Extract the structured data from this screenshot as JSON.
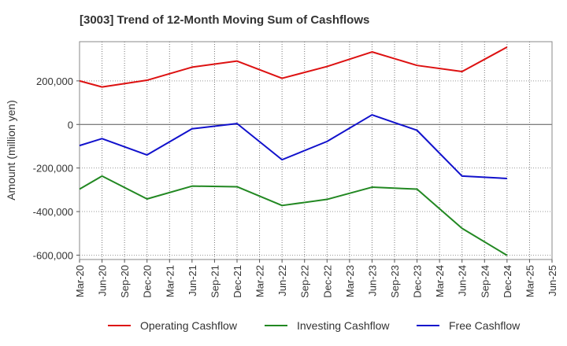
{
  "chart_data": {
    "type": "line",
    "title": "[3003]  Trend of 12-Month Moving Sum of Cashflows",
    "xlabel": "",
    "ylabel": "Amount (million yen)",
    "ylim": [
      -620000,
      380000
    ],
    "yticks": [
      200000,
      0,
      -200000,
      -400000,
      -600000
    ],
    "ytick_labels": [
      "200,000",
      "0",
      "-200,000",
      "-400,000",
      "-600,000"
    ],
    "categories": [
      "Mar-20",
      "Jun-20",
      "Sep-20",
      "Dec-20",
      "Mar-21",
      "Jun-21",
      "Sep-21",
      "Dec-21",
      "Mar-22",
      "Jun-22",
      "Sep-22",
      "Dec-22",
      "Mar-23",
      "Jun-23",
      "Sep-23",
      "Dec-23",
      "Mar-24",
      "Jun-24",
      "Sep-24",
      "Dec-24",
      "Mar-25",
      "Jun-25"
    ],
    "grid": true,
    "legend_position": "bottom",
    "series": [
      {
        "name": "Operating Cashflow",
        "color": "#dd1111",
        "values": [
          200000,
          172000,
          null,
          203000,
          null,
          263000,
          null,
          291000,
          null,
          212000,
          null,
          266000,
          null,
          333000,
          null,
          271000,
          null,
          243000,
          null,
          355000,
          null,
          null
        ]
      },
      {
        "name": "Investing Cashflow",
        "color": "#228822",
        "values": [
          -297000,
          -237000,
          null,
          -342000,
          null,
          -283000,
          null,
          -286000,
          null,
          -372000,
          null,
          -344000,
          null,
          -288000,
          null,
          -297000,
          null,
          -477000,
          null,
          -601000,
          null,
          null
        ]
      },
      {
        "name": "Free Cashflow",
        "color": "#1111cc",
        "values": [
          -97000,
          -65000,
          null,
          -140000,
          null,
          -20000,
          null,
          4000,
          null,
          -162000,
          null,
          -78000,
          null,
          44000,
          null,
          -27000,
          null,
          -237000,
          null,
          -248000,
          null,
          null
        ]
      }
    ]
  }
}
